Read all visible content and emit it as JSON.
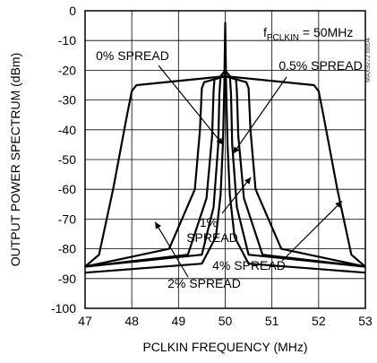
{
  "chart_data": {
    "type": "line",
    "title": "",
    "xlabel": "PCLKIN FREQUENCY (MHz)",
    "ylabel": "OUTPUT POWER SPECTRUM (dBm)",
    "xlim": [
      47,
      53
    ],
    "ylim": [
      -100,
      0
    ],
    "x_ticks": [
      47,
      48,
      49,
      50,
      51,
      52,
      53
    ],
    "y_ticks": [
      0,
      -10,
      -20,
      -30,
      -40,
      -50,
      -60,
      -70,
      -80,
      -90,
      -100
    ],
    "grid": true,
    "condition": {
      "prefix": "f",
      "subscript": "PCLKIN",
      "suffix": " = 50MHz"
    },
    "watermark": "MAX9272 toc04",
    "series": [
      {
        "name": "0% SPREAD",
        "spread_percent": 0,
        "x": [
          47.0,
          49.5,
          49.8,
          49.9,
          49.95,
          49.98,
          50.0,
          50.02,
          50.05,
          50.1,
          50.2,
          50.5,
          53.0
        ],
        "y": [
          -88,
          -85,
          -76,
          -62,
          -45,
          -25,
          -4,
          -25,
          -45,
          -62,
          -76,
          -85,
          -88
        ]
      },
      {
        "name": "0.5% SPREAD",
        "spread_percent": 0.5,
        "x": [
          47.0,
          49.5,
          49.75,
          49.85,
          49.875,
          49.9,
          50.0,
          50.1,
          50.125,
          50.15,
          50.25,
          50.5,
          53.0
        ],
        "y": [
          -86,
          -82,
          -66,
          -45,
          -28,
          -22,
          -20,
          -22,
          -28,
          -45,
          -66,
          -82,
          -86
        ]
      },
      {
        "name": "1% SPREAD",
        "spread_percent": 1,
        "x": [
          47.0,
          49.2,
          49.6,
          49.72,
          49.75,
          49.77,
          50.0,
          50.23,
          50.25,
          50.28,
          50.4,
          50.8,
          53.0
        ],
        "y": [
          -86,
          -82,
          -63,
          -42,
          -27,
          -23,
          -22,
          -23,
          -27,
          -42,
          -63,
          -82,
          -86
        ]
      },
      {
        "name": "2% SPREAD",
        "spread_percent": 2,
        "x": [
          47.0,
          48.8,
          49.35,
          49.46,
          49.5,
          49.55,
          50.0,
          50.45,
          50.5,
          50.54,
          50.65,
          51.2,
          53.0
        ],
        "y": [
          -86,
          -80,
          -60,
          -40,
          -26,
          -24,
          -22,
          -24,
          -26,
          -40,
          -60,
          -80,
          -86
        ]
      },
      {
        "name": "4% SPREAD",
        "spread_percent": 4,
        "x": [
          47.0,
          47.3,
          47.6,
          47.9,
          48.0,
          48.1,
          50.0,
          51.9,
          52.0,
          52.1,
          52.4,
          52.7,
          53.0
        ],
        "y": [
          -86,
          -82,
          -60,
          -35,
          -27,
          -25,
          -22,
          -25,
          -27,
          -35,
          -60,
          -82,
          -86
        ]
      }
    ],
    "annotations": [
      {
        "text": "0% SPREAD",
        "series": "0% SPREAD"
      },
      {
        "text": "0.5% SPREAD",
        "series": "0.5% SPREAD"
      },
      {
        "lines": [
          "1%",
          "SPREAD"
        ],
        "series": "1% SPREAD"
      },
      {
        "text": "2% SPREAD",
        "series": "2% SPREAD"
      },
      {
        "text": "4% SPREAD",
        "series": "4% SPREAD"
      }
    ]
  }
}
